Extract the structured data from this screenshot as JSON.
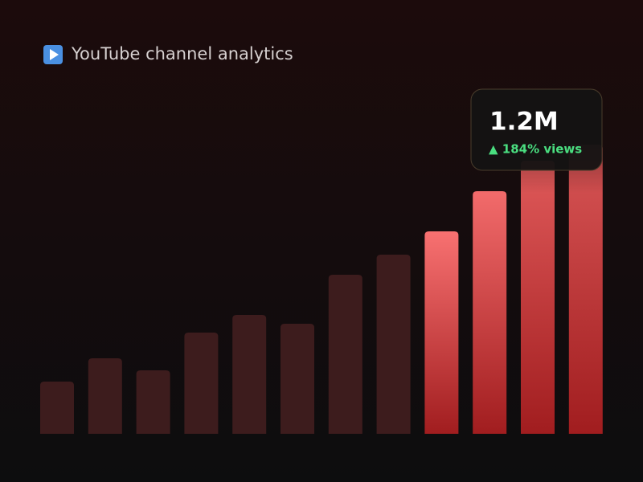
{
  "chart_data": {
    "type": "bar",
    "title": "YouTube channel analytics",
    "categories": [
      null,
      null,
      null,
      null,
      null,
      null,
      null,
      null,
      null,
      null,
      null,
      null
    ],
    "values": [
      65,
      94,
      79,
      126,
      148,
      137,
      198,
      223,
      252,
      302,
      340,
      360
    ],
    "colors": [
      "#3d1c1d",
      "#3d1c1d",
      "#3d1c1d",
      "#3d1c1d",
      "#3d1c1d",
      "#3d1c1d",
      "#3d1c1d",
      "#3d1c1d",
      "#f87171",
      "#f26b6b",
      "#e05a5a",
      "#d85656"
    ],
    "color_bottoms": [
      "#3d1c1d",
      "#3d1c1d",
      "#3d1c1d",
      "#3d1c1d",
      "#3d1c1d",
      "#3d1c1d",
      "#3d1c1d",
      "#3d1c1d",
      "#a11d1f",
      "#a11d1f",
      "#a11d1f",
      "#a11d1f"
    ],
    "ylim": [
      0,
      400
    ],
    "annotation": {
      "value": "1.2M",
      "change": "▲ 184% views"
    }
  }
}
